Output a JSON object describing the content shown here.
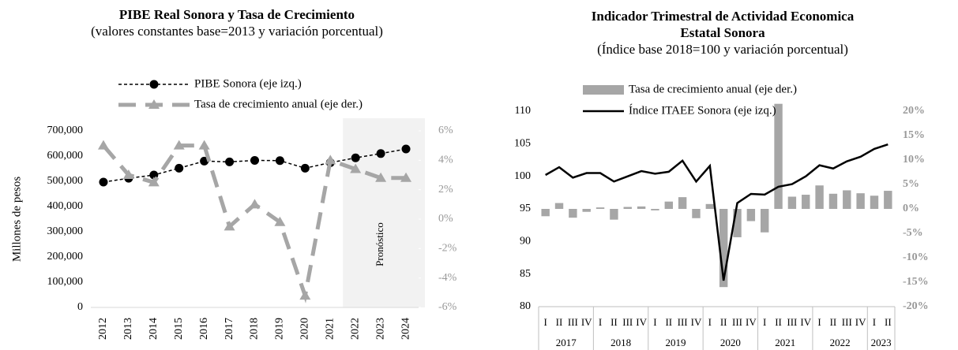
{
  "chart_data": [
    {
      "type": "line",
      "title": "PIBE Real Sonora y Tasa de Crecimiento",
      "subtitle": "(valores constantes base=2013 y variación porcentual)",
      "y_label": "Millones de pesos",
      "annotation": "Pronóstico",
      "annotation_start": "2022",
      "categories": [
        "2012",
        "2013",
        "2014",
        "2015",
        "2016",
        "2017",
        "2018",
        "2019",
        "2020",
        "2021",
        "2022",
        "2023",
        "2024"
      ],
      "series": [
        {
          "name": "PIBE Sonora (eje izq.)",
          "color": "#000000",
          "axis": "y",
          "values": [
            497000,
            512000,
            525000,
            552000,
            580000,
            577000,
            583000,
            582000,
            552000,
            574000,
            593000,
            610000,
            628000
          ]
        },
        {
          "name": "Tasa de crecimiento anual (eje der.)",
          "color": "#a6a6a6",
          "axis": "y2",
          "values": [
            5.0,
            3.0,
            2.5,
            5.0,
            5.0,
            -0.5,
            1.0,
            -0.2,
            -5.2,
            4.0,
            3.4,
            2.8,
            2.8
          ]
        }
      ],
      "ylim": [
        0,
        700000
      ],
      "yticks": [
        0,
        {
          "value": 100000,
          "label": "100,000"
        },
        {
          "value": 200000,
          "label": "200,000"
        },
        {
          "value": 300000,
          "label": "300,000"
        },
        {
          "value": 400000,
          "label": "400,000"
        },
        {
          "value": 500000,
          "label": "500,000"
        },
        {
          "value": 600000,
          "label": "600,000"
        },
        {
          "value": 700000,
          "label": "700,000"
        }
      ],
      "y2lim": [
        -6,
        6
      ],
      "y2ticks": [
        {
          "value": -6,
          "label": "-6%"
        },
        {
          "value": -4,
          "label": "-4%"
        },
        {
          "value": -2,
          "label": "-2%"
        },
        {
          "value": 0,
          "label": "0%"
        },
        {
          "value": 2,
          "label": "2%"
        },
        {
          "value": 4,
          "label": "4%"
        },
        {
          "value": 6,
          "label": "6%"
        }
      ]
    },
    {
      "type": "combo",
      "title": "Indicador Trimestral de Actividad Economica Estatal Sonora",
      "subtitle": "(Índice base 2018=100 y variación porcentual)",
      "categories": [
        "I",
        "II",
        "III",
        "IV",
        "I",
        "II",
        "III",
        "IV",
        "I",
        "II",
        "III",
        "IV",
        "I",
        "II",
        "III",
        "IV",
        "I",
        "II",
        "III",
        "IV",
        "I",
        "II",
        "III",
        "IV",
        "I",
        "II"
      ],
      "years": [
        "2017",
        "2018",
        "2019",
        "2020",
        "2021",
        "2022",
        "2023"
      ],
      "series": [
        {
          "name": "Tasa de crecimiento anual (eje der.)",
          "color": "#a6a6a6",
          "axis": "y2",
          "kind": "bar",
          "values": [
            -1.5,
            1.2,
            -1.8,
            -0.6,
            0.3,
            -2.2,
            0.4,
            0.5,
            -0.3,
            1.5,
            2.4,
            -1.9,
            1.0,
            -16.0,
            -5.8,
            -2.5,
            -4.8,
            21.5,
            2.5,
            2.9,
            4.8,
            3.1,
            3.8,
            3.2,
            2.7,
            3.7
          ]
        },
        {
          "name": "Índice ITAEE Sonora (eje izq.)",
          "color": "#000000",
          "axis": "y",
          "kind": "line",
          "values": [
            100.2,
            101.4,
            99.8,
            100.5,
            100.5,
            99.2,
            100.0,
            100.8,
            100.4,
            100.7,
            102.4,
            99.2,
            101.6,
            84.0,
            95.9,
            97.3,
            97.2,
            98.4,
            98.8,
            100.0,
            101.7,
            101.2,
            102.3,
            103.0,
            104.2,
            104.9
          ]
        }
      ],
      "ylim": [
        80,
        110
      ],
      "yticks": [
        80,
        85,
        90,
        95,
        100,
        105,
        110
      ],
      "y2lim": [
        -20,
        20
      ],
      "y2ticks": [
        {
          "value": -20,
          "label": "-20%"
        },
        {
          "value": -15,
          "label": "-15%"
        },
        {
          "value": -10,
          "label": "-10%"
        },
        {
          "value": -5,
          "label": "-5%"
        },
        {
          "value": 0,
          "label": "0%"
        },
        {
          "value": 5,
          "label": "5%"
        },
        {
          "value": 10,
          "label": "10%"
        },
        {
          "value": 15,
          "label": "15%"
        },
        {
          "value": 20,
          "label": "20%"
        }
      ]
    }
  ]
}
